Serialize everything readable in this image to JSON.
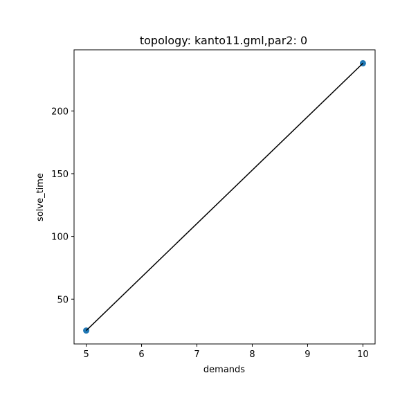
{
  "chart_data": {
    "type": "scatter",
    "title": "topology: kanto11.gml,par2: 0",
    "xlabel": "demands",
    "ylabel": "solve_time",
    "xlim": [
      4.78,
      10.22
    ],
    "ylim": [
      14.3,
      248.7
    ],
    "xticks": [
      5,
      6,
      7,
      8,
      9,
      10
    ],
    "yticks": [
      50,
      100,
      150,
      200
    ],
    "grid": false,
    "series": [
      {
        "x": [
          5,
          10
        ],
        "y": [
          25,
          238
        ],
        "marker_color": "#1f77b4",
        "line_color": "#000000"
      }
    ]
  }
}
